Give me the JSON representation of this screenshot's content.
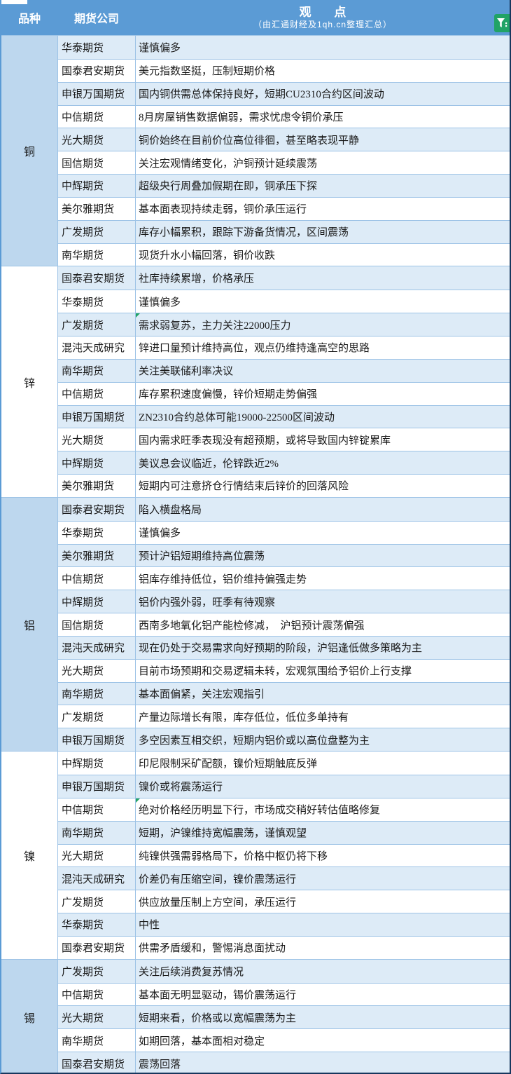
{
  "header": {
    "variety_label": "品种",
    "company_label": "期货公司",
    "opinion_label": "观 点",
    "opinion_subtitle": "（由汇通财经及1qh.cn整理汇总）"
  },
  "icons": {
    "filter": "filter-funnel-icon",
    "comment_marker": "comment-triangle-icon"
  },
  "colors": {
    "header_bg": "#5B9BD5",
    "header_text": "#FFFFFF",
    "category_shaded_bg": "#BDD7EE",
    "category_plain_bg": "#FFFFFF",
    "row_stripe_bg": "#DDEBF7",
    "row_plain_bg": "#FFFFFF",
    "grid_line": "#9DC3E6",
    "outer_border_dark": "#17375E",
    "outer_border_left": "#5B9BD5",
    "comment_green": "#21A366",
    "filter_icon_green": "#21A366",
    "body_text": "#1A1A1A"
  },
  "sections": [
    {
      "id": "copper",
      "category": "铜",
      "shaded": true,
      "rows": [
        {
          "company": "华泰期货",
          "opinion": "谨慎偏多"
        },
        {
          "company": "国泰君安期货",
          "opinion": "美元指数坚挺，压制短期价格"
        },
        {
          "company": "申银万国期货",
          "opinion": "国内铜供需总体保持良好，短期CU2310合约区间波动"
        },
        {
          "company": "中信期货",
          "opinion": "8月房屋销售数据偏弱，需求忧虑令铜价承压"
        },
        {
          "company": "光大期货",
          "opinion": "铜价始终在目前价位高位徘徊，甚至略表现平静"
        },
        {
          "company": "国信期货",
          "opinion": "关注宏观情绪变化，沪铜预计延续震荡"
        },
        {
          "company": "中辉期货",
          "opinion": "超级央行周叠加假期在即，铜承压下探"
        },
        {
          "company": "美尔雅期货",
          "opinion": "基本面表现持续走弱，铜价承压运行"
        },
        {
          "company": "广发期货",
          "opinion": "库存小幅累积，跟踪下游备货情况，区间震荡"
        },
        {
          "company": "南华期货",
          "opinion": "现货升水小幅回落，铜价收跌"
        }
      ]
    },
    {
      "id": "zinc",
      "category": "锌",
      "shaded": false,
      "rows": [
        {
          "company": "国泰君安期货",
          "opinion": "社库持续累增，价格承压"
        },
        {
          "company": "华泰期货",
          "opinion": "谨慎偏多"
        },
        {
          "company": "广发期货",
          "opinion": "需求弱复苏，主力关注22000压力",
          "comment": true
        },
        {
          "company": "混沌天成研究",
          "opinion": "锌进口量预计维持高位，观点仍维持逢高空的思路"
        },
        {
          "company": "南华期货",
          "opinion": "关注美联储利率决议"
        },
        {
          "company": "中信期货",
          "opinion": "库存累积速度偏慢，锌价短期走势偏强"
        },
        {
          "company": "申银万国期货",
          "opinion": "ZN2310合约总体可能19000-22500区间波动"
        },
        {
          "company": "光大期货",
          "opinion": "国内需求旺季表现没有超预期，或将导致国内锌锭累库"
        },
        {
          "company": "中辉期货",
          "opinion": "美议息会议临近，伦锌跌近2%"
        },
        {
          "company": "美尔雅期货",
          "opinion": "短期内可注意挤仓行情结束后锌价的回落风险"
        }
      ]
    },
    {
      "id": "aluminum",
      "category": "铝",
      "shaded": true,
      "rows": [
        {
          "company": "国泰君安期货",
          "opinion": "陷入横盘格局"
        },
        {
          "company": "华泰期货",
          "opinion": "谨慎偏多"
        },
        {
          "company": "美尔雅期货",
          "opinion": "预计沪铝短期维持高位震荡"
        },
        {
          "company": "中信期货",
          "opinion": "铝库存维持低位，铝价维持偏强走势"
        },
        {
          "company": "中辉期货",
          "opinion": "铝价内强外弱，旺季有待观察"
        },
        {
          "company": "国信期货",
          "opinion": "西南多地氧化铝产能检修减，　沪铝预计震荡偏强"
        },
        {
          "company": "混沌天成研究",
          "opinion": "现在仍处于交易需求向好预期的阶段，沪铝逢低做多策略为主"
        },
        {
          "company": "光大期货",
          "opinion": "目前市场预期和交易逻辑未转，宏观氛围给予铝价上行支撑"
        },
        {
          "company": "南华期货",
          "opinion": "基本面偏紧，关注宏观指引"
        },
        {
          "company": "广发期货",
          "opinion": "产量边际增长有限，库存低位，低位多单持有"
        },
        {
          "company": "申银万国期货",
          "opinion": "多空因素互相交织，短期内铝价或以高位盘整为主"
        }
      ]
    },
    {
      "id": "nickel",
      "category": "镍",
      "shaded": false,
      "rows": [
        {
          "company": "中辉期货",
          "opinion": "印尼限制采矿配额，镍价短期触底反弹"
        },
        {
          "company": "申银万国期货",
          "opinion": "镍价或将震荡运行"
        },
        {
          "company": "中信期货",
          "opinion": "绝对价格经历明显下行，市场成交稍好转估值略修复",
          "comment": true
        },
        {
          "company": "南华期货",
          "opinion": "短期，沪镍维持宽幅震荡，谨慎观望"
        },
        {
          "company": "光大期货",
          "opinion": "纯镍供强需弱格局下，价格中枢仍将下移"
        },
        {
          "company": "混沌天成研究",
          "opinion": "价差仍有压缩空间，镍价震荡运行"
        },
        {
          "company": "广发期货",
          "opinion": "供应放量压制上方空间，承压运行"
        },
        {
          "company": "华泰期货",
          "opinion": "中性"
        },
        {
          "company": "国泰君安期货",
          "opinion": "供需矛盾缓和，警惕消息面扰动"
        }
      ]
    },
    {
      "id": "tin",
      "category": "锡",
      "shaded": true,
      "rows": [
        {
          "company": "广发期货",
          "opinion": "关注后续消费复苏情况"
        },
        {
          "company": "中信期货",
          "opinion": "基本面无明显驱动，锡价震荡运行"
        },
        {
          "company": "光大期货",
          "opinion": "短期来看，价格或以宽幅震荡为主"
        },
        {
          "company": "南华期货",
          "opinion": "如期回落，基本面相对稳定"
        },
        {
          "company": "国泰君安期货",
          "opinion": "震荡回落"
        }
      ]
    }
  ]
}
